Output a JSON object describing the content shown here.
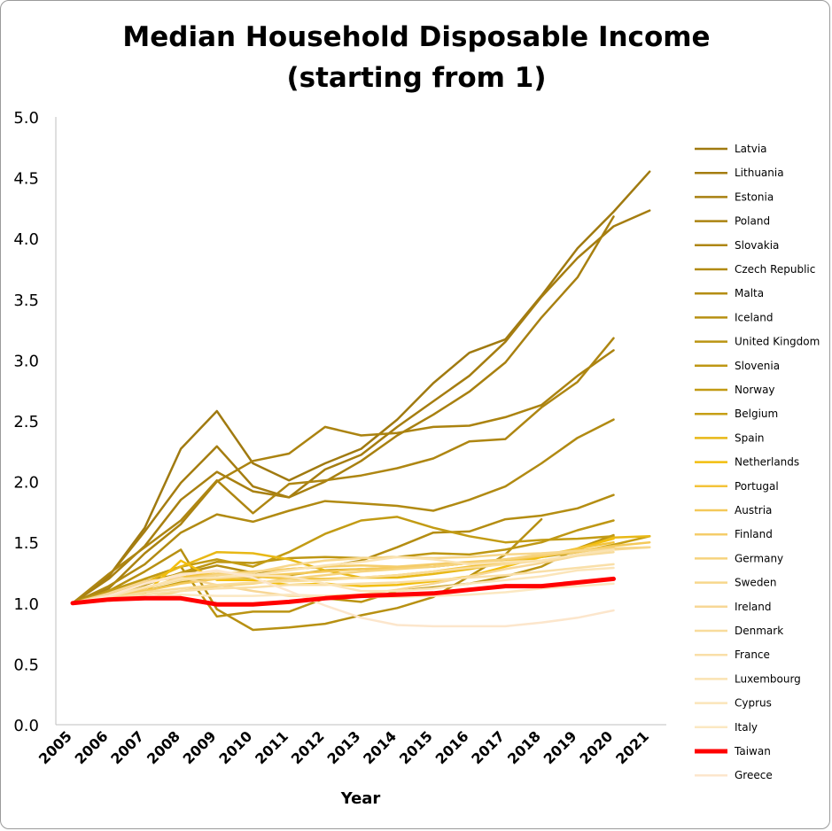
{
  "chart_data": {
    "type": "line",
    "title": [
      "Median Household Disposable Income",
      "(starting from 1)"
    ],
    "xlabel": "Year",
    "ylabel": "",
    "ylim": [
      0,
      5
    ],
    "yticks": [
      "0.0",
      "0.5",
      "1.0",
      "1.5",
      "2.0",
      "2.5",
      "3.0",
      "3.5",
      "4.0",
      "4.5",
      "5.0"
    ],
    "x": [
      "2005",
      "2006",
      "2007",
      "2008",
      "2009",
      "2010",
      "2011",
      "2012",
      "2013",
      "2014",
      "2015",
      "2016",
      "2017",
      "2018",
      "2019",
      "2020",
      "2021"
    ],
    "grid": false,
    "legend_position": "right",
    "series": [
      {
        "name": "Latvia",
        "color": "#a07a10",
        "width": 2.5,
        "values": [
          1.0,
          1.22,
          1.62,
          2.27,
          2.58,
          2.15,
          2.01,
          2.15,
          2.27,
          2.51,
          2.81,
          3.06,
          3.17,
          3.53,
          3.92,
          4.22,
          4.55
        ]
      },
      {
        "name": "Lithuania",
        "color": "#a57d10",
        "width": 2.5,
        "values": [
          1.0,
          1.22,
          1.59,
          1.99,
          2.29,
          1.96,
          1.87,
          2.1,
          2.22,
          2.45,
          2.66,
          2.87,
          3.15,
          3.52,
          3.84,
          4.1,
          4.23
        ]
      },
      {
        "name": "Estonia",
        "color": "#a88010",
        "width": 2.5,
        "values": [
          1.0,
          1.2,
          1.47,
          1.85,
          2.08,
          1.92,
          1.87,
          2.0,
          2.17,
          2.38,
          2.55,
          2.74,
          2.98,
          3.35,
          3.68,
          4.18,
          null
        ]
      },
      {
        "name": "Poland",
        "color": "#ab8310",
        "width": 2.5,
        "values": [
          1.0,
          1.12,
          1.41,
          1.65,
          2.0,
          2.17,
          2.23,
          2.45,
          2.38,
          2.4,
          2.45,
          2.46,
          2.53,
          2.63,
          2.87,
          3.08,
          null
        ]
      },
      {
        "name": "Slovakia",
        "color": "#ae8612",
        "width": 2.5,
        "values": [
          1.0,
          1.24,
          1.46,
          1.68,
          2.01,
          1.74,
          1.98,
          2.01,
          2.05,
          2.11,
          2.19,
          2.33,
          2.35,
          2.61,
          2.82,
          3.18,
          null
        ]
      },
      {
        "name": "Czech Republic",
        "color": "#b18a12",
        "width": 2.5,
        "values": [
          1.0,
          1.14,
          1.32,
          1.58,
          1.73,
          1.67,
          1.76,
          1.84,
          1.82,
          1.8,
          1.76,
          1.85,
          1.96,
          2.15,
          2.36,
          2.51,
          null
        ]
      },
      {
        "name": "Malta",
        "color": "#b48d12",
        "width": 2.5,
        "values": [
          1.0,
          1.08,
          1.18,
          1.24,
          1.31,
          1.25,
          1.28,
          1.3,
          1.35,
          1.46,
          1.58,
          1.59,
          1.69,
          1.72,
          1.78,
          1.89,
          null
        ]
      },
      {
        "name": "Iceland",
        "color": "#b79012",
        "width": 2.5,
        "values": [
          1.0,
          1.1,
          1.26,
          1.44,
          0.95,
          0.78,
          0.8,
          0.83,
          0.9,
          0.96,
          1.05,
          1.22,
          1.4,
          1.69,
          null,
          null,
          null
        ]
      },
      {
        "name": "United Kingdom",
        "color": "#bb9413",
        "width": 2.5,
        "values": [
          1.0,
          1.06,
          1.2,
          1.3,
          0.89,
          0.93,
          0.93,
          1.04,
          1.01,
          1.1,
          1.13,
          1.16,
          1.22,
          1.3,
          1.45,
          1.56,
          null
        ]
      },
      {
        "name": "Slovenia",
        "color": "#be9714",
        "width": 2.5,
        "values": [
          1.0,
          1.07,
          1.15,
          1.25,
          1.34,
          1.33,
          1.37,
          1.38,
          1.37,
          1.38,
          1.41,
          1.4,
          1.44,
          1.5,
          1.6,
          1.68,
          null
        ]
      },
      {
        "name": "Norway",
        "color": "#c29b14",
        "width": 2.5,
        "values": [
          1.0,
          1.1,
          1.2,
          1.3,
          1.36,
          1.3,
          1.42,
          1.57,
          1.68,
          1.71,
          1.62,
          1.55,
          1.5,
          1.52,
          1.53,
          1.55,
          null
        ]
      },
      {
        "name": "Belgium",
        "color": "#c69f15",
        "width": 2.5,
        "values": [
          1.0,
          1.04,
          1.1,
          1.17,
          1.21,
          1.21,
          1.23,
          1.27,
          1.28,
          1.29,
          1.3,
          1.33,
          1.35,
          1.38,
          1.42,
          1.48,
          1.55
        ]
      },
      {
        "name": "Spain",
        "color": "#e8b816",
        "width": 2.5,
        "values": [
          1.0,
          1.07,
          1.17,
          1.3,
          1.42,
          1.41,
          1.36,
          1.27,
          1.21,
          1.21,
          1.24,
          1.28,
          1.33,
          1.38,
          1.44,
          1.54,
          1.55
        ]
      },
      {
        "name": "Netherlands",
        "color": "#f2be0e",
        "width": 2.5,
        "values": [
          1.0,
          1.03,
          1.08,
          1.35,
          1.19,
          1.19,
          1.15,
          1.16,
          1.14,
          1.15,
          1.18,
          1.22,
          1.3,
          1.38,
          1.45,
          1.53,
          null
        ]
      },
      {
        "name": "Portugal",
        "color": "#f3c33a",
        "width": 2.5,
        "values": [
          1.0,
          1.04,
          1.12,
          1.21,
          1.26,
          1.22,
          1.2,
          1.2,
          1.21,
          1.23,
          1.26,
          1.3,
          1.34,
          1.39,
          1.45,
          1.5,
          null
        ]
      },
      {
        "name": "Austria",
        "color": "#f4c95a",
        "width": 2.5,
        "values": [
          1.0,
          1.05,
          1.1,
          1.16,
          1.2,
          1.22,
          1.24,
          1.26,
          1.28,
          1.29,
          1.3,
          1.33,
          1.36,
          1.39,
          1.43,
          1.47,
          1.5
        ]
      },
      {
        "name": "Finland",
        "color": "#f5cd6a",
        "width": 2.5,
        "values": [
          1.0,
          1.05,
          1.12,
          1.2,
          1.24,
          1.26,
          1.28,
          1.3,
          1.31,
          1.3,
          1.32,
          1.34,
          1.36,
          1.39,
          1.42,
          1.46,
          null
        ]
      },
      {
        "name": "Germany",
        "color": "#f6d37d",
        "width": 2.5,
        "values": [
          1.0,
          1.02,
          1.04,
          1.1,
          1.14,
          1.16,
          1.2,
          1.23,
          1.26,
          1.28,
          1.3,
          1.33,
          1.36,
          1.4,
          1.43,
          1.45,
          1.46
        ]
      },
      {
        "name": "Sweden",
        "color": "#f7d78c",
        "width": 2.5,
        "values": [
          1.0,
          1.06,
          1.13,
          1.19,
          1.23,
          1.25,
          1.31,
          1.35,
          1.37,
          1.38,
          1.37,
          1.38,
          1.4,
          1.41,
          1.43,
          1.44,
          1.46
        ]
      },
      {
        "name": "Ireland",
        "color": "#f7d796",
        "width": 2.5,
        "values": [
          1.0,
          1.08,
          1.18,
          1.21,
          1.15,
          1.1,
          1.06,
          1.06,
          1.07,
          1.11,
          1.16,
          1.22,
          1.28,
          1.33,
          1.39,
          1.44,
          null
        ]
      },
      {
        "name": "Denmark",
        "color": "#f8dc9c",
        "width": 2.5,
        "values": [
          1.0,
          1.04,
          1.09,
          1.12,
          1.15,
          1.17,
          1.18,
          1.19,
          1.21,
          1.23,
          1.26,
          1.29,
          1.32,
          1.35,
          1.39,
          1.42,
          null
        ]
      },
      {
        "name": "France",
        "color": "#f9dfa8",
        "width": 2.5,
        "values": [
          1.0,
          1.03,
          1.07,
          1.1,
          1.12,
          1.13,
          1.15,
          1.15,
          1.16,
          1.17,
          1.19,
          1.21,
          1.23,
          1.26,
          1.29,
          1.32,
          null
        ]
      },
      {
        "name": "Luxembourg",
        "color": "#fae3b2",
        "width": 2.5,
        "values": [
          1.0,
          1.05,
          1.13,
          1.2,
          1.21,
          1.23,
          1.27,
          1.31,
          1.34,
          1.38,
          1.36,
          1.32,
          1.34,
          1.35,
          1.4,
          1.44,
          null
        ]
      },
      {
        "name": "Cyprus",
        "color": "#fbe5ba",
        "width": 2.5,
        "values": [
          1.0,
          1.06,
          1.16,
          1.24,
          1.26,
          1.23,
          1.22,
          1.16,
          1.1,
          1.1,
          1.12,
          1.16,
          1.19,
          1.22,
          1.27,
          1.29,
          null
        ]
      },
      {
        "name": "Italy",
        "color": "#fbe8c2",
        "width": 2.5,
        "values": [
          1.0,
          1.02,
          1.05,
          1.07,
          1.06,
          1.06,
          1.07,
          1.06,
          1.05,
          1.05,
          1.06,
          1.07,
          1.09,
          1.12,
          1.14,
          1.16,
          null
        ]
      },
      {
        "name": "Taiwan",
        "color": "#ff0000",
        "width": 5,
        "values": [
          1.0,
          1.03,
          1.04,
          1.04,
          0.99,
          0.99,
          1.01,
          1.04,
          1.06,
          1.07,
          1.08,
          1.11,
          1.14,
          1.14,
          1.17,
          1.2,
          null
        ]
      },
      {
        "name": "Greece",
        "color": "#fce6cc",
        "width": 2.5,
        "values": [
          1.0,
          1.06,
          1.16,
          1.23,
          1.27,
          1.21,
          1.1,
          0.98,
          0.88,
          0.82,
          0.81,
          0.81,
          0.81,
          0.84,
          0.88,
          0.94,
          null
        ]
      }
    ]
  }
}
